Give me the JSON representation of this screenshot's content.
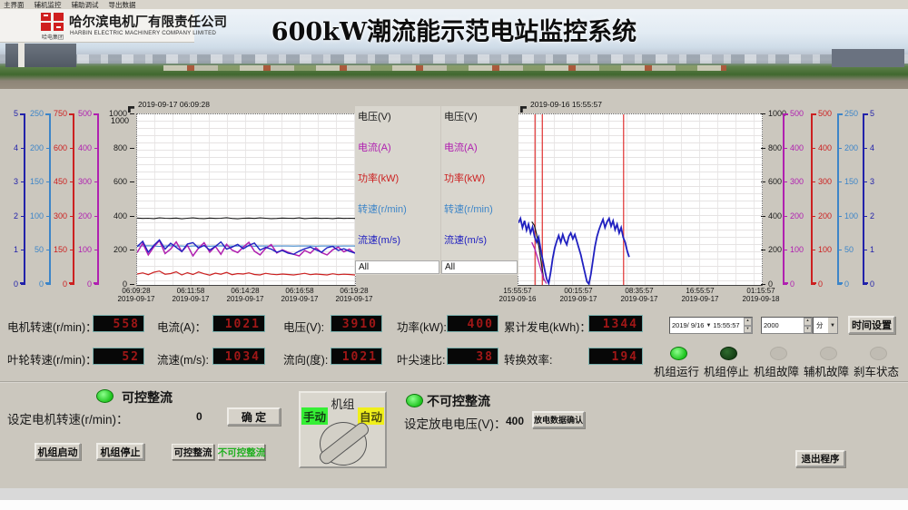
{
  "menu": {
    "items": [
      "主界面",
      "辅机监控",
      "辅助调试",
      "导出数据"
    ]
  },
  "header": {
    "logo_text": "哈电集团",
    "company_cn": "哈尔滨电机厂有限责任公司",
    "company_en": "HARBIN ELECTRIC MACHINERY COMPANY LIMITED",
    "title": "600kW潮流能示范电站监控系统"
  },
  "colors": {
    "navy": "#2222aa",
    "cyan": "#3d85c8",
    "red": "#cc2020",
    "magenta": "#b020b0",
    "black": "#1a1a1a",
    "blue_line": "#2020c0",
    "cursor_red": "#e03030",
    "led_on": "#2ee62e",
    "led_dim": "#154a15"
  },
  "legend": {
    "items": [
      {
        "label": "电压(V)",
        "color": "#1a1a1a"
      },
      {
        "label": "电流(A)",
        "color": "#b020b0"
      },
      {
        "label": "功率(kW)",
        "color": "#cc2020"
      },
      {
        "label": "转速(r/min)",
        "color": "#3d85c8"
      },
      {
        "label": "流速(m/s)",
        "color": "#2020c0"
      }
    ],
    "all_label": "All"
  },
  "chart_data": [
    {
      "type": "line",
      "timestamp": "2019-09-17 06:09:28",
      "inner_scale_label": "1000",
      "x_ticks": [
        {
          "time": "06:09:28",
          "date": "2019-09-17"
        },
        {
          "time": "06:11:58",
          "date": "2019-09-17"
        },
        {
          "time": "06:14:28",
          "date": "2019-09-17"
        },
        {
          "time": "06:16:58",
          "date": "2019-09-17"
        },
        {
          "time": "06:19:28",
          "date": "2019-09-17"
        }
      ],
      "axes": [
        {
          "labels": [
            "5",
            "4",
            "3",
            "2",
            "1",
            "0"
          ],
          "color": "#2222aa"
        },
        {
          "labels": [
            "250",
            "200",
            "150",
            "100",
            "50",
            "0"
          ],
          "color": "#3d85c8"
        },
        {
          "labels": [
            "750",
            "600",
            "450",
            "300",
            "150",
            "0"
          ],
          "color": "#cc2020"
        },
        {
          "labels": [
            "500",
            "400",
            "300",
            "200",
            "100",
            "0"
          ],
          "color": "#b020b0"
        }
      ],
      "edge_axis": {
        "labels": [
          "1000",
          "800",
          "600",
          "400",
          "200",
          "0"
        ],
        "color": "#1a1a1a"
      },
      "series": [
        {
          "name": "电压(V)",
          "color": "#1a1a1a",
          "max": 1000,
          "width": 1.1,
          "values": [
            392,
            390,
            391,
            389,
            393,
            391,
            390,
            392,
            388,
            391,
            393,
            390,
            389,
            392,
            390,
            391,
            394,
            390,
            388,
            391,
            392,
            390,
            393,
            391,
            389,
            390,
            392,
            391,
            390,
            393,
            389,
            391,
            392,
            390,
            391,
            389,
            392,
            390,
            391,
            390
          ]
        },
        {
          "name": "转速(r/min)",
          "color": "#3d85c8",
          "max": 250,
          "width": 1.1,
          "values": [
            57,
            57,
            57.5,
            57,
            56.5,
            57,
            57.5,
            57,
            57,
            56.5,
            57,
            57.2,
            57,
            56.8,
            57,
            57.3,
            57,
            56.9,
            57.1,
            57,
            57.2,
            56.8,
            57,
            57.1,
            56.9,
            57,
            57.2,
            57,
            56.9,
            57,
            57.1,
            57,
            56.8,
            57,
            57.2,
            57,
            56.9,
            57,
            57.1,
            57
          ]
        },
        {
          "name": "电流(A)",
          "color": "#b020b0",
          "max": 500,
          "width": 1.5,
          "values": [
            95,
            122,
            88,
            112,
            130,
            92,
            105,
            126,
            98,
            116,
            85,
            108,
            124,
            96,
            113,
            90,
            119,
            102,
            95,
            111,
            125,
            99,
            88,
            107,
            118,
            94,
            103,
            96,
            90,
            85,
            101,
            93,
            109,
            95,
            88,
            103,
            111,
            97,
            105,
            93
          ]
        },
        {
          "name": "流速(m/s)",
          "color": "#2020c0",
          "max": 5,
          "width": 1.4,
          "values": [
            1.12,
            1.28,
            0.96,
            1.16,
            1.32,
            1.05,
            1.22,
            1.1,
            0.98,
            1.2,
            1.24,
            1.08,
            1.16,
            1.02,
            1.13,
            1.26,
            1.05,
            1.11,
            1.19,
            1.06,
            1.16,
            1.23,
            1.02,
            1.1,
            1.05,
            0.96,
            1.01,
            0.93,
            0.9,
            0.99,
            1.06,
            1.11,
            1.03,
            0.96,
            1.09,
            1.13,
            1.01,
            1.06,
            0.99,
            0.93
          ]
        },
        {
          "name": "功率(kW)",
          "color": "#cc2020",
          "max": 750,
          "width": 1.2,
          "values": [
            48,
            53,
            45,
            56,
            61,
            47,
            50,
            58,
            44,
            54,
            46,
            57,
            49,
            43,
            52,
            47,
            55,
            45,
            50,
            48,
            53,
            46,
            44,
            51,
            47,
            45,
            48,
            46,
            44,
            47,
            51,
            45,
            48,
            46,
            44,
            49,
            45,
            47,
            46,
            44
          ]
        }
      ],
      "cursors": []
    },
    {
      "type": "line",
      "timestamp": "2019-09-16 15:55:57",
      "inner_scale_label": "1000",
      "x_ticks": [
        {
          "time": "15:55:57",
          "date": "2019-09-16"
        },
        {
          "time": "00:15:57",
          "date": "2019-09-17"
        },
        {
          "time": "08:35:57",
          "date": "2019-09-17"
        },
        {
          "time": "16:55:57",
          "date": "2019-09-17"
        },
        {
          "time": "01:15:57",
          "date": "2019-09-18"
        }
      ],
      "edge_axis": {
        "labels": [
          "1000",
          "800",
          "600",
          "400",
          "200",
          "0"
        ],
        "color": "#1a1a1a"
      },
      "axes": [
        {
          "labels": [
            "500",
            "400",
            "300",
            "200",
            "100",
            "0"
          ],
          "color": "#b020b0"
        },
        {
          "labels": [
            "500",
            "400",
            "300",
            "200",
            "100",
            "0"
          ],
          "color": "#cc2020"
        },
        {
          "labels": [
            "250",
            "200",
            "150",
            "100",
            "50",
            "0"
          ],
          "color": "#3d85c8"
        },
        {
          "labels": [
            "5",
            "4",
            "3",
            "2",
            "1",
            "0"
          ],
          "color": "#2222aa"
        }
      ],
      "series": [
        {
          "name": "电压(V)",
          "color": "#1a1a1a",
          "max": 1000,
          "width": 1.2,
          "span": [
            0.055,
            0.105
          ],
          "values": [
            370,
            350,
            295,
            215,
            115,
            25
          ]
        },
        {
          "name": "电流(A)",
          "color": "#b020b0",
          "max": 500,
          "width": 1.3,
          "span": [
            0.055,
            0.115
          ],
          "values": [
            125,
            105,
            78,
            48,
            20,
            4
          ]
        },
        {
          "name": "流速(m/s)",
          "color": "#2020c0",
          "max": 5,
          "width": 1.8,
          "span": [
            0,
            0.455
          ],
          "values": [
            1.82,
            1.95,
            1.68,
            1.88,
            1.6,
            1.78,
            1.52,
            1.7,
            1.42,
            1.25,
            1.4,
            1.05,
            0.75,
            0.45,
            0.18,
            0.05,
            0.38,
            0.78,
            1.08,
            1.28,
            1.45,
            1.25,
            1.48,
            1.3,
            1.18,
            1.42,
            1.52,
            1.35,
            1.48,
            1.28,
            1.08,
            0.88,
            0.62,
            0.35,
            0.1,
            0.03,
            0.32,
            0.72,
            1.12,
            1.42,
            1.62,
            1.78,
            1.92,
            1.68,
            1.85,
            1.95,
            1.72,
            1.88,
            1.62,
            1.78,
            1.52,
            1.68,
            1.4,
            1.25,
            1.0,
            0.82
          ]
        }
      ],
      "cursors": [
        0.068,
        0.098,
        0.432
      ]
    }
  ],
  "readouts": {
    "row1": [
      {
        "label": "电机转速(r/min)：",
        "value": "558"
      },
      {
        "label": "电流(A)：",
        "value": "1021"
      },
      {
        "label": "电压(V):",
        "value": "3910"
      },
      {
        "label": "功率(kW):",
        "value": "400"
      },
      {
        "label": "累计发电(kWh)：",
        "value": "1344"
      }
    ],
    "row2": [
      {
        "label": "叶轮转速(r/min)：",
        "value": "52"
      },
      {
        "label": "流速(m/s):",
        "value": "1034"
      },
      {
        "label": "流向(度):",
        "value": "1021"
      },
      {
        "label": "叶尖速比:",
        "value": "38"
      },
      {
        "label": "转换效率:",
        "value": "194"
      }
    ]
  },
  "time_controls": {
    "date": "2019/ 9/16",
    "time": "15:55:57",
    "duration": "2000",
    "unit": "分",
    "set_button": "时间设置"
  },
  "status_leds": [
    {
      "label": "机组运行",
      "state": "on"
    },
    {
      "label": "机组停止",
      "state": "dim"
    },
    {
      "label": "机组故障",
      "state": "off"
    },
    {
      "label": "辅机故障",
      "state": "off"
    },
    {
      "label": "刹车状态",
      "state": "off"
    }
  ],
  "controls": {
    "left": {
      "header": "可控整流",
      "set_speed_label": "设定电机转速(r/min)：",
      "set_speed_value": "0",
      "confirm_button": "确 定",
      "buttons": [
        "机组启动",
        "机组停止",
        "可控整流",
        "不可控整流"
      ]
    },
    "unit_switch": {
      "title": "机组",
      "manual": "手动",
      "auto": "自动"
    },
    "right": {
      "header": "不可控整流",
      "set_voltage_label": "设定放电电压(V)：",
      "set_voltage_value": "400",
      "confirm_button": "放电数据确认"
    },
    "exit_button": "退出程序"
  }
}
